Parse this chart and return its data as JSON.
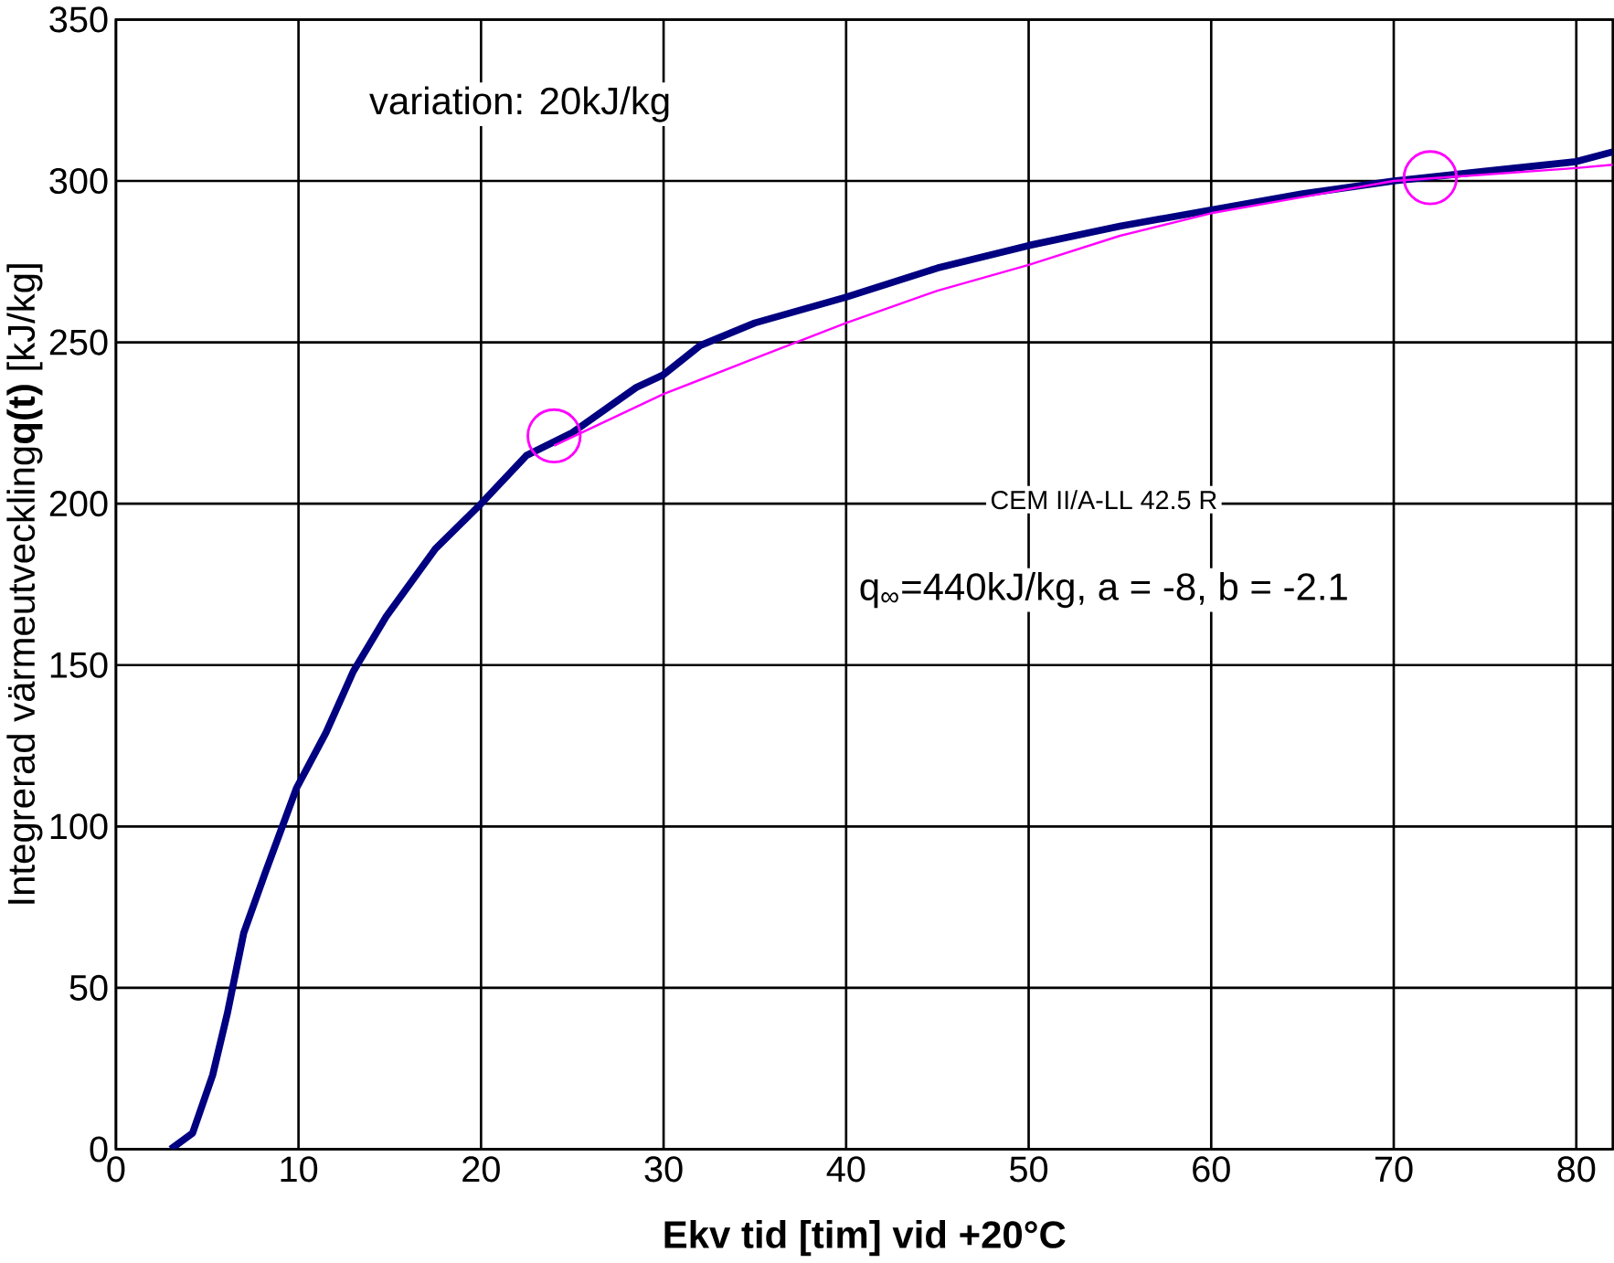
{
  "chart_data": {
    "type": "line",
    "xlabel": "Ekv tid [tim] vid +20°C",
    "ylabel": "Integrerad värmeutveckling**q(t)** [kJ/kg]",
    "xlim": [
      0,
      82
    ],
    "ylim": [
      0,
      350
    ],
    "xticks": [
      0,
      10,
      20,
      30,
      40,
      50,
      60,
      70,
      80
    ],
    "yticks": [
      0,
      50,
      100,
      150,
      200,
      250,
      300,
      350
    ],
    "grid": true,
    "series": [
      {
        "color": "#000080",
        "marker": "none",
        "x": [
          3,
          4.2,
          5.3,
          6.1,
          7,
          8.2,
          9.9,
          11.5,
          13,
          14.8,
          17.5,
          20,
          22.5,
          25,
          28.5,
          30,
          32,
          35,
          40,
          45,
          50,
          55,
          60,
          65,
          70,
          75,
          80,
          82
        ],
        "values": [
          0,
          5,
          23,
          42,
          67,
          86,
          112,
          129,
          148,
          165,
          186,
          200,
          215,
          222,
          236,
          240,
          249,
          256,
          264,
          273,
          280,
          286,
          291,
          296,
          300,
          303,
          306,
          309
        ]
      },
      {
        "color": "#ff00ff",
        "marker": "none",
        "x": [
          24,
          27,
          30,
          35,
          40,
          45,
          50,
          55,
          60,
          65,
          70,
          75,
          80,
          82
        ],
        "values": [
          218,
          226,
          234,
          245,
          256,
          266,
          274,
          283,
          290,
          295,
          300,
          302,
          304,
          305
        ]
      },
      {
        "type": "scatter",
        "color": "#ff00ff",
        "marker": "circle",
        "x": [
          24,
          72
        ],
        "values": [
          221,
          301
        ]
      }
    ],
    "annotations": [
      "variation: 20kJ/kg",
      "CEM II/A-LL 42.5 R",
      "q$_{∞}$=440kJ/kg, a = -8, b = -2.1"
    ]
  }
}
